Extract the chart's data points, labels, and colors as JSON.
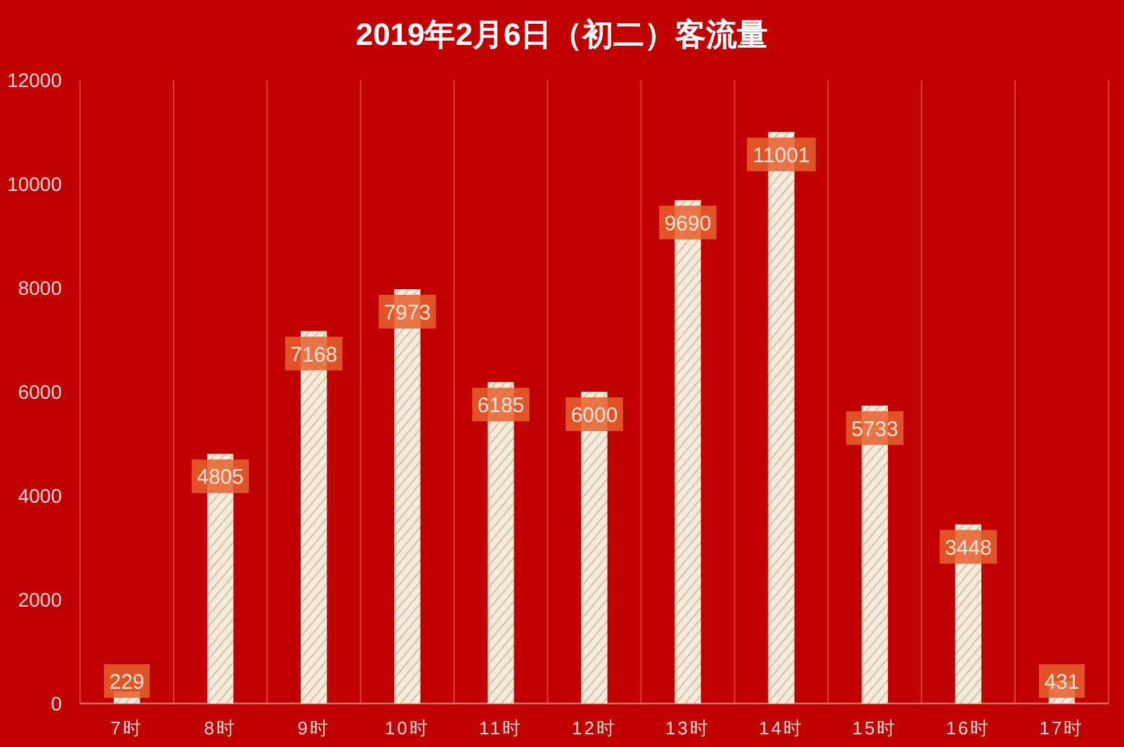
{
  "chart_data": {
    "type": "bar",
    "title": "2019年2月6日（初二）客流量",
    "categories": [
      "7时",
      "8时",
      "9时",
      "10时",
      "11时",
      "12时",
      "13时",
      "14时",
      "15时",
      "16时",
      "17时"
    ],
    "series": [
      {
        "color": "#f5ebdc",
        "values": [
          229,
          4805,
          7168,
          7973,
          6185,
          6000,
          9690,
          11001,
          5733,
          3448,
          431
        ]
      }
    ],
    "ylim": [
      0,
      12000
    ],
    "yticks": [
      0,
      2000,
      4000,
      6000,
      8000,
      10000,
      12000
    ],
    "grid": "x",
    "data_labels": true
  }
}
